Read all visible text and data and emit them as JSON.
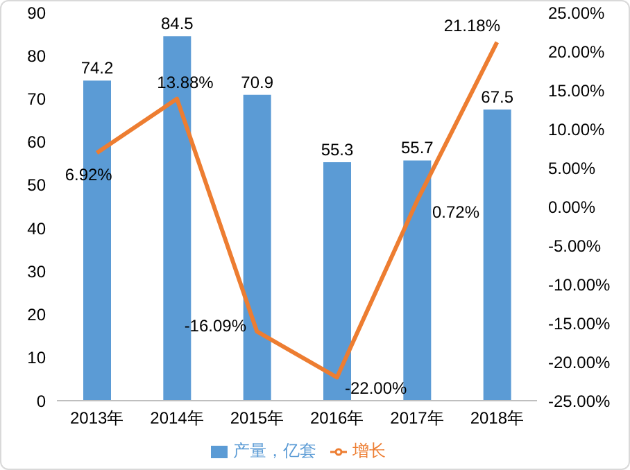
{
  "chart_data": {
    "type": "bar",
    "categories": [
      "2013年",
      "2014年",
      "2015年",
      "2016年",
      "2017年",
      "2018年"
    ],
    "series": [
      {
        "name": "产量，亿套",
        "color": "#5b9bd5",
        "values": [
          74.2,
          84.5,
          70.9,
          55.3,
          55.7,
          67.5
        ],
        "value_labels": [
          "74.2",
          "84.5",
          "70.9",
          "55.3",
          "55.7",
          "67.5"
        ]
      },
      {
        "name": "增长",
        "type": "line",
        "axis": "y2",
        "color": "#ed7d31",
        "marker": "none",
        "values": [
          6.92,
          13.88,
          -16.09,
          -22.0,
          0.72,
          21.18
        ],
        "value_labels": [
          "6.92%",
          "13.88%",
          "-16.09%",
          "-22.00%",
          "0.72%",
          "21.18%"
        ]
      }
    ],
    "ylim": [
      0,
      90
    ],
    "yticks": [
      0,
      10,
      20,
      30,
      40,
      50,
      60,
      70,
      80,
      90
    ],
    "y2lim": [
      -25,
      25
    ],
    "y2ticks": [
      {
        "value": -25,
        "label": "-25.00%"
      },
      {
        "value": -20,
        "label": "-20.00%"
      },
      {
        "value": -15,
        "label": "-15.00%"
      },
      {
        "value": -10,
        "label": "-10.00%"
      },
      {
        "value": -5,
        "label": "-5.00%"
      },
      {
        "value": 0,
        "label": "0.00%"
      },
      {
        "value": 5,
        "label": "5.00%"
      },
      {
        "value": 10,
        "label": "10.00%"
      },
      {
        "value": 15,
        "label": "15.00%"
      },
      {
        "value": 20,
        "label": "20.00%"
      },
      {
        "value": 25,
        "label": "25.00%"
      }
    ],
    "grid": false,
    "legend": "bottom"
  }
}
